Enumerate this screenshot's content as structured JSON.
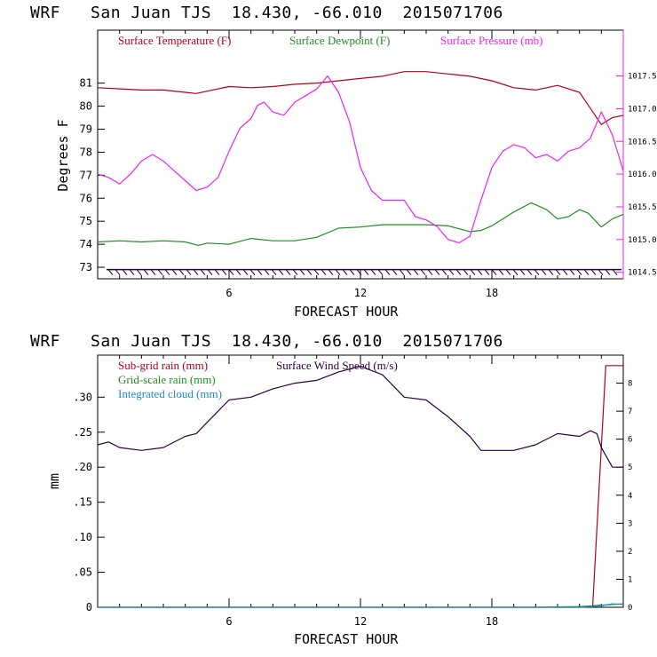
{
  "chart_data": [
    {
      "type": "line",
      "title": "WRF   San Juan TJS  18.430, -66.010  2015071706",
      "xlabel": "FORECAST HOUR",
      "ylabel": "Degrees F",
      "xlim": [
        0,
        24
      ],
      "ylim": [
        72.5,
        83.3
      ],
      "y2lim": [
        1014.4,
        1018.2
      ],
      "x_ticks": [
        6,
        12,
        18
      ],
      "y_ticks": [
        73,
        74,
        75,
        76,
        77,
        78,
        79,
        80,
        81
      ],
      "y2_ticks": [
        "1014.5",
        "1015.0",
        "1015.5",
        "1016.0",
        "1016.5",
        "1017.0",
        "1017.5"
      ],
      "y2_tick_values": [
        1014.5,
        1015.0,
        1015.5,
        1016.0,
        1016.5,
        1017.0,
        1017.5
      ],
      "series": [
        {
          "name": "Surface Temperature (F)",
          "axis": "left",
          "color": "#b0001b",
          "x": [
            0,
            1,
            2,
            3,
            4,
            4.5,
            5,
            6,
            7,
            8,
            9,
            10,
            11,
            12,
            13,
            14,
            15,
            16,
            17,
            18,
            19,
            20,
            21,
            22,
            22.5,
            23,
            23.5,
            24
          ],
          "y": [
            80.8,
            80.75,
            80.7,
            80.7,
            80.6,
            80.55,
            80.65,
            80.85,
            80.8,
            80.85,
            80.95,
            81.0,
            81.1,
            81.2,
            81.3,
            81.5,
            81.5,
            81.4,
            81.3,
            81.1,
            80.8,
            80.7,
            80.9,
            80.6,
            79.9,
            79.2,
            79.5,
            79.6
          ]
        },
        {
          "name": "Surface Dewpoint (F)",
          "axis": "left",
          "color": "#228b22",
          "x": [
            0,
            1,
            2,
            3,
            4,
            4.6,
            5,
            6,
            7,
            8,
            9,
            10,
            11,
            12,
            13,
            14,
            15,
            16,
            17,
            17.5,
            18,
            19,
            19.8,
            20.5,
            21,
            21.5,
            22,
            22.4,
            23,
            23.5,
            24
          ],
          "y": [
            74.1,
            74.15,
            74.1,
            74.15,
            74.1,
            73.95,
            74.05,
            74.0,
            74.25,
            74.15,
            74.15,
            74.3,
            74.7,
            74.75,
            74.85,
            74.85,
            74.85,
            74.8,
            74.55,
            74.6,
            74.8,
            75.4,
            75.8,
            75.5,
            75.1,
            75.2,
            75.5,
            75.35,
            74.75,
            75.1,
            75.3
          ]
        },
        {
          "name": "Surface Pressure (mb)",
          "axis": "right",
          "color": "#ee22ee",
          "x": [
            0,
            0.5,
            1,
            1.5,
            2,
            2.5,
            3,
            3.5,
            4,
            4.5,
            5,
            5.5,
            6,
            6.5,
            7,
            7.3,
            7.6,
            8,
            8.5,
            9,
            9.5,
            10,
            10.5,
            11,
            11.5,
            12,
            12.5,
            13,
            13.5,
            14,
            14.5,
            15,
            15.5,
            16,
            16.5,
            17,
            17.5,
            18,
            18.5,
            19,
            19.5,
            20,
            20.5,
            21,
            21.5,
            22,
            22.5,
            23,
            23.5,
            24
          ],
          "y": [
            1016.0,
            1015.95,
            1015.85,
            1016.0,
            1016.2,
            1016.3,
            1016.2,
            1016.05,
            1015.9,
            1015.75,
            1015.8,
            1015.95,
            1016.35,
            1016.7,
            1016.85,
            1017.05,
            1017.1,
            1016.95,
            1016.9,
            1017.1,
            1017.2,
            1017.3,
            1017.5,
            1017.25,
            1016.8,
            1016.1,
            1015.75,
            1015.6,
            1015.6,
            1015.6,
            1015.35,
            1015.3,
            1015.2,
            1015.0,
            1014.95,
            1015.05,
            1015.6,
            1016.1,
            1016.35,
            1016.45,
            1016.4,
            1016.25,
            1016.3,
            1016.2,
            1016.35,
            1016.4,
            1016.55,
            1016.95,
            1016.6,
            1016.05
          ]
        }
      ],
      "wind_barbs": {
        "count": 72,
        "color": "#2a0044",
        "level": 72.9
      }
    },
    {
      "type": "line",
      "title": "WRF   San Juan TJS  18.430, -66.010  2015071706",
      "xlabel": "FORECAST HOUR",
      "ylabel": "mm",
      "xlim": [
        0,
        24
      ],
      "ylim": [
        0,
        0.36
      ],
      "y2lim": [
        0,
        9
      ],
      "x_ticks": [
        6,
        12,
        18
      ],
      "y_ticks": [
        "0",
        ".05",
        ".10",
        ".15",
        ".20",
        ".25",
        ".30"
      ],
      "y_tick_values": [
        0,
        0.05,
        0.1,
        0.15,
        0.2,
        0.25,
        0.3
      ],
      "y2_ticks": [
        "0",
        "1",
        "2",
        "3",
        "4",
        "5",
        "6",
        "7",
        "8"
      ],
      "y2_tick_values": [
        0,
        1,
        2,
        3,
        4,
        5,
        6,
        7,
        8
      ],
      "series": [
        {
          "name": "Sub-grid rain (mm)",
          "axis": "left",
          "color": "#b0001b",
          "x": [
            0,
            22.6,
            23.2,
            24
          ],
          "y": [
            0,
            0,
            0.345,
            0.345
          ]
        },
        {
          "name": "Grid-scale rain (mm)",
          "axis": "left",
          "color": "#228b22",
          "x": [
            0,
            20,
            22,
            23,
            24
          ],
          "y": [
            0,
            0,
            0.001,
            0.003,
            0.005
          ]
        },
        {
          "name": "Integrated cloud (mm)",
          "axis": "left",
          "color": "#1e88cc",
          "x": [
            0,
            22,
            23,
            23.5,
            24
          ],
          "y": [
            0,
            0,
            0.002,
            0.005,
            0.004
          ]
        },
        {
          "name": "Surface Wind Speed (m/s)",
          "axis": "right",
          "color": "#2a0044",
          "x": [
            0,
            0.5,
            1,
            2,
            3,
            4,
            4.5,
            5,
            6,
            7,
            8,
            9,
            10,
            11,
            12,
            13,
            14,
            15,
            16,
            17,
            17.5,
            18,
            19,
            20,
            21,
            22,
            22.5,
            22.8,
            23,
            23.5,
            24
          ],
          "y": [
            5.8,
            5.9,
            5.7,
            5.6,
            5.7,
            6.1,
            6.2,
            6.6,
            7.4,
            7.5,
            7.8,
            8.0,
            8.1,
            8.4,
            8.6,
            8.3,
            7.5,
            7.4,
            6.8,
            6.1,
            5.6,
            5.6,
            5.6,
            5.8,
            6.2,
            6.1,
            6.3,
            6.2,
            5.7,
            5.0,
            5.0
          ]
        }
      ]
    }
  ]
}
